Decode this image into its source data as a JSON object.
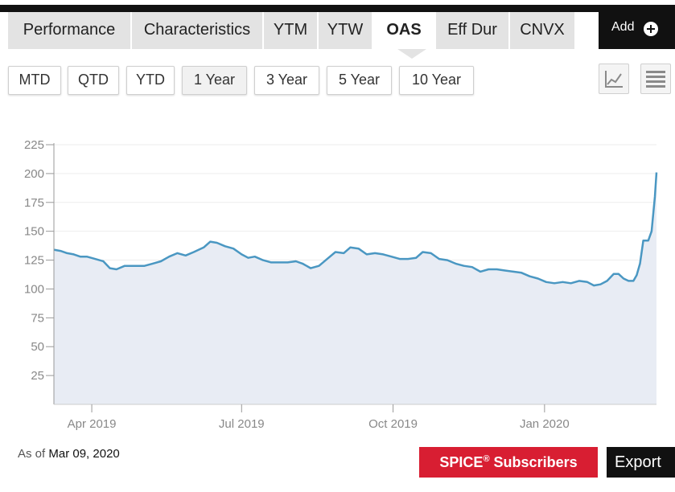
{
  "tabs": [
    {
      "label": "Performance"
    },
    {
      "label": "Characteristics"
    },
    {
      "label": "YTM"
    },
    {
      "label": "YTW"
    },
    {
      "label": "OAS",
      "active": true
    },
    {
      "label": "Eff Dur"
    },
    {
      "label": "CNVX"
    }
  ],
  "add_button": {
    "label": "Add",
    "icon": "plus-circle-icon"
  },
  "ranges": [
    {
      "label": "MTD"
    },
    {
      "label": "QTD"
    },
    {
      "label": "YTD"
    },
    {
      "label": "1 Year",
      "active": true
    },
    {
      "label": "3 Year"
    },
    {
      "label": "5 Year"
    },
    {
      "label": "10 Year"
    }
  ],
  "view_buttons": [
    {
      "name": "line-chart-view-icon"
    },
    {
      "name": "menu-icon"
    }
  ],
  "chart_data": {
    "type": "area",
    "title": "",
    "xlabel": "",
    "ylabel": "",
    "ylim": [
      0,
      225
    ],
    "yticks": [
      25,
      50,
      75,
      100,
      125,
      150,
      175,
      200,
      225
    ],
    "xticks": [
      "Apr 2019",
      "Jul 2019",
      "Oct 2019",
      "Jan 2020"
    ],
    "xtick_dates": [
      "2019-04-01",
      "2019-07-01",
      "2019-10-01",
      "2020-01-01"
    ],
    "xrange": [
      "2019-03-09",
      "2020-03-09"
    ],
    "series": [
      {
        "name": "",
        "color": "#4a97c2",
        "fill": "#e8ecf4",
        "points": [
          [
            "2019-03-09",
            134
          ],
          [
            "2019-03-13",
            133
          ],
          [
            "2019-03-17",
            131
          ],
          [
            "2019-03-21",
            130
          ],
          [
            "2019-03-25",
            128
          ],
          [
            "2019-03-29",
            128
          ],
          [
            "2019-04-03",
            126
          ],
          [
            "2019-04-08",
            124
          ],
          [
            "2019-04-12",
            118
          ],
          [
            "2019-04-16",
            117
          ],
          [
            "2019-04-21",
            120
          ],
          [
            "2019-04-28",
            120
          ],
          [
            "2019-05-03",
            120
          ],
          [
            "2019-05-08",
            122
          ],
          [
            "2019-05-13",
            124
          ],
          [
            "2019-05-18",
            128
          ],
          [
            "2019-05-23",
            131
          ],
          [
            "2019-05-28",
            129
          ],
          [
            "2019-06-02",
            132
          ],
          [
            "2019-06-08",
            136
          ],
          [
            "2019-06-12",
            141
          ],
          [
            "2019-06-16",
            140
          ],
          [
            "2019-06-21",
            137
          ],
          [
            "2019-06-26",
            135
          ],
          [
            "2019-07-01",
            130
          ],
          [
            "2019-07-05",
            127
          ],
          [
            "2019-07-09",
            128
          ],
          [
            "2019-07-14",
            125
          ],
          [
            "2019-07-19",
            123
          ],
          [
            "2019-07-24",
            123
          ],
          [
            "2019-07-29",
            123
          ],
          [
            "2019-08-03",
            124
          ],
          [
            "2019-08-07",
            122
          ],
          [
            "2019-08-12",
            118
          ],
          [
            "2019-08-17",
            120
          ],
          [
            "2019-08-22",
            126
          ],
          [
            "2019-08-27",
            132
          ],
          [
            "2019-09-01",
            131
          ],
          [
            "2019-09-05",
            136
          ],
          [
            "2019-09-10",
            135
          ],
          [
            "2019-09-15",
            130
          ],
          [
            "2019-09-20",
            131
          ],
          [
            "2019-09-25",
            130
          ],
          [
            "2019-09-30",
            128
          ],
          [
            "2019-10-05",
            126
          ],
          [
            "2019-10-10",
            126
          ],
          [
            "2019-10-15",
            127
          ],
          [
            "2019-10-19",
            132
          ],
          [
            "2019-10-24",
            131
          ],
          [
            "2019-10-29",
            126
          ],
          [
            "2019-11-03",
            125
          ],
          [
            "2019-11-08",
            122
          ],
          [
            "2019-11-13",
            120
          ],
          [
            "2019-11-18",
            119
          ],
          [
            "2019-11-23",
            115
          ],
          [
            "2019-11-28",
            117
          ],
          [
            "2019-12-03",
            117
          ],
          [
            "2019-12-08",
            116
          ],
          [
            "2019-12-13",
            115
          ],
          [
            "2019-12-18",
            114
          ],
          [
            "2019-12-23",
            111
          ],
          [
            "2019-12-28",
            109
          ],
          [
            "2020-01-02",
            106
          ],
          [
            "2020-01-07",
            105
          ],
          [
            "2020-01-12",
            106
          ],
          [
            "2020-01-17",
            105
          ],
          [
            "2020-01-22",
            107
          ],
          [
            "2020-01-27",
            106
          ],
          [
            "2020-01-31",
            103
          ],
          [
            "2020-02-04",
            104
          ],
          [
            "2020-02-08",
            107
          ],
          [
            "2020-02-12",
            113
          ],
          [
            "2020-02-15",
            113
          ],
          [
            "2020-02-18",
            109
          ],
          [
            "2020-02-21",
            107
          ],
          [
            "2020-02-24",
            107
          ],
          [
            "2020-02-26",
            112
          ],
          [
            "2020-02-28",
            122
          ],
          [
            "2020-03-01",
            142
          ],
          [
            "2020-03-04",
            142
          ],
          [
            "2020-03-06",
            150
          ],
          [
            "2020-03-08",
            180
          ],
          [
            "2020-03-09",
            201
          ]
        ]
      }
    ]
  },
  "footer": {
    "as_of_label": "As of",
    "as_of_date": "Mar 09, 2020",
    "spice_label": "SPICE",
    "spice_sup": "®",
    "spice_suffix": " Subscribers",
    "export_label": "Export"
  }
}
